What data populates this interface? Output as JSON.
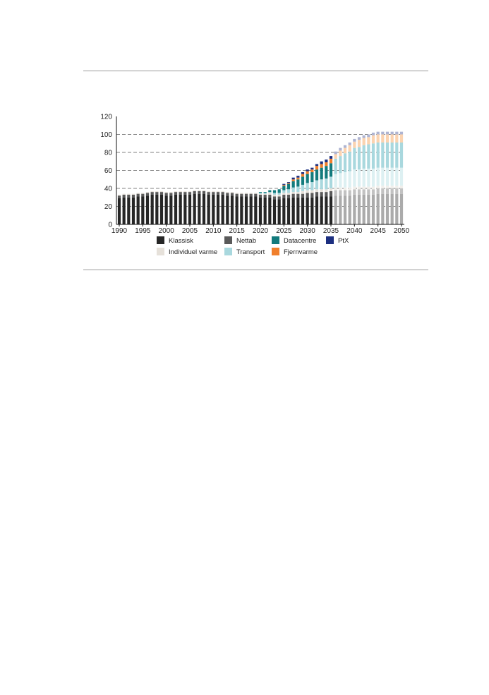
{
  "chart_data": {
    "type": "bar",
    "stacked": true,
    "ylim": [
      0,
      120
    ],
    "yticks": [
      0,
      20,
      40,
      60,
      80,
      100,
      120
    ],
    "xtick_labels": [
      "1990",
      "1995",
      "2000",
      "2005",
      "2010",
      "2015",
      "2020",
      "2025",
      "2030",
      "2035",
      "2040",
      "2045",
      "2050"
    ],
    "grid": "dashed horizontal at 20, 40, 60, 80, 100",
    "legend_position": "bottom",
    "projection_note": "bars after 2035 rendered in lighter tints",
    "colors": {
      "Klassisk": "#262626",
      "Nettab": "#5a5a5a",
      "Datacentre": "#137b7d",
      "PtX": "#1c2f80",
      "Individuel varme": "#e6e1da",
      "Transport": "#a9d8de",
      "Fjernvarme": "#f07f2c"
    },
    "light_colors": {
      "Klassisk": "#ababab",
      "Nettab": "#c2c2c2",
      "Datacentre": "#a9d8de",
      "PtX": "#aeb4d2",
      "Individuel varme": "#f0eeea",
      "Transport": "#ddf0f2",
      "Fjernvarme": "#fbd3b0"
    },
    "series_order": [
      "Klassisk",
      "Nettab",
      "Individuel varme",
      "Transport",
      "Datacentre",
      "Fjernvarme",
      "PtX"
    ],
    "x": [
      1990,
      1991,
      1992,
      1993,
      1994,
      1995,
      1996,
      1997,
      1998,
      1999,
      2000,
      2001,
      2002,
      2003,
      2004,
      2005,
      2006,
      2007,
      2008,
      2009,
      2010,
      2011,
      2012,
      2013,
      2014,
      2015,
      2016,
      2017,
      2018,
      2019,
      2020,
      2021,
      2022,
      2023,
      2024,
      2025,
      2026,
      2027,
      2028,
      2029,
      2030,
      2031,
      2032,
      2033,
      2034,
      2035,
      2036,
      2037,
      2038,
      2039,
      2040,
      2041,
      2042,
      2043,
      2044,
      2045,
      2046,
      2047,
      2048,
      2049,
      2050
    ],
    "series": [
      {
        "name": "Klassisk",
        "values": [
          29,
          30,
          30,
          30,
          31,
          31,
          32,
          33,
          33,
          33,
          32,
          32,
          33,
          33,
          33,
          33,
          34,
          34,
          34,
          33,
          33,
          33,
          33,
          32,
          32,
          31,
          31,
          31,
          31,
          31,
          30,
          30,
          30,
          28,
          28,
          29,
          29,
          30,
          30,
          30,
          30,
          30,
          31,
          31,
          31,
          31,
          32,
          32,
          32,
          32,
          33,
          33,
          33,
          33,
          33,
          34,
          34,
          34,
          34,
          34,
          34
        ]
      },
      {
        "name": "Nettab",
        "values": [
          3,
          3,
          3,
          3,
          3,
          3,
          3,
          3,
          3,
          3,
          3,
          3,
          3,
          3,
          3,
          3,
          3,
          3,
          3,
          3,
          3,
          3,
          3,
          3,
          3,
          3,
          3,
          3,
          3,
          3,
          3,
          3,
          3,
          3,
          3,
          4,
          4,
          4,
          4,
          4,
          5,
          5,
          5,
          5,
          5,
          6,
          6,
          6,
          6,
          6,
          6,
          6,
          6,
          6,
          6,
          6,
          6,
          6,
          6,
          6,
          6
        ]
      },
      {
        "name": "Individuel varme",
        "values": [
          1,
          1,
          1,
          1,
          1,
          1,
          1,
          1,
          1,
          1,
          1,
          1,
          1,
          1,
          1,
          1,
          1,
          1,
          1,
          1,
          1,
          1,
          1,
          1,
          1,
          1,
          1,
          1,
          1,
          1,
          1,
          1,
          2,
          2,
          2,
          2,
          2,
          2,
          2,
          3,
          3,
          3,
          3,
          3,
          3,
          3,
          3,
          3,
          3,
          3,
          3,
          3,
          3,
          3,
          3,
          3,
          3,
          3,
          3,
          3,
          3
        ]
      },
      {
        "name": "Transport",
        "values": [
          0,
          0,
          0,
          0,
          0,
          0,
          0,
          0,
          0,
          0,
          0,
          0,
          0,
          0,
          0,
          0,
          0,
          0,
          0,
          0,
          0,
          0,
          0,
          0,
          0,
          0,
          0,
          0,
          0,
          0,
          1,
          1,
          1,
          2,
          2,
          3,
          4,
          5,
          6,
          7,
          8,
          9,
          10,
          11,
          12,
          13,
          15,
          16,
          17,
          18,
          19,
          19,
          20,
          20,
          20,
          20,
          20,
          20,
          20,
          20,
          20
        ]
      },
      {
        "name": "Datacentre",
        "values": [
          0,
          0,
          0,
          0,
          0,
          0,
          0,
          0,
          0,
          0,
          0,
          0,
          0,
          0,
          0,
          0,
          0,
          0,
          0,
          0,
          0,
          0,
          0,
          0,
          0,
          0,
          0,
          0,
          0,
          0,
          1,
          1,
          2,
          3,
          4,
          5,
          6,
          7,
          8,
          9,
          10,
          11,
          12,
          13,
          14,
          15,
          17,
          19,
          21,
          22,
          24,
          25,
          26,
          27,
          28,
          28,
          28,
          28,
          28,
          28,
          28
        ]
      },
      {
        "name": "Fjernvarme",
        "values": [
          0,
          0,
          0,
          0,
          0,
          0,
          0,
          0,
          0,
          0,
          0,
          0,
          0,
          0,
          0,
          0,
          0,
          0,
          0,
          0,
          0,
          0,
          0,
          0,
          0,
          0,
          0,
          0,
          0,
          0,
          0,
          0,
          0,
          0,
          0,
          1,
          1,
          2,
          2,
          3,
          3,
          3,
          4,
          4,
          4,
          5,
          5,
          6,
          6,
          7,
          7,
          8,
          8,
          8,
          9,
          9,
          9,
          9,
          9,
          9,
          9
        ]
      },
      {
        "name": "PtX",
        "values": [
          0,
          0,
          0,
          0,
          0,
          0,
          0,
          0,
          0,
          0,
          0,
          0,
          0,
          0,
          0,
          0,
          0,
          0,
          0,
          0,
          0,
          0,
          0,
          0,
          0,
          0,
          0,
          0,
          0,
          0,
          0,
          0,
          0,
          0,
          0,
          1,
          1,
          2,
          2,
          2,
          2,
          2,
          2,
          3,
          3,
          3,
          3,
          3,
          3,
          3,
          3,
          3,
          3,
          3,
          3,
          3,
          3,
          3,
          3,
          3,
          3
        ]
      }
    ],
    "projection_start": 2036,
    "legend": {
      "row1": [
        {
          "key": "Klassisk",
          "label": "Klassisk"
        },
        {
          "key": "Nettab",
          "label": "Nettab"
        },
        {
          "key": "Datacentre",
          "label": "Datacentre"
        },
        {
          "key": "PtX",
          "label": "PtX"
        }
      ],
      "row2": [
        {
          "key": "Individuel varme",
          "label": "Individuel varme"
        },
        {
          "key": "Transport",
          "label": "Transport"
        },
        {
          "key": "Fjernvarme",
          "label": "Fjernvarme"
        }
      ]
    }
  }
}
